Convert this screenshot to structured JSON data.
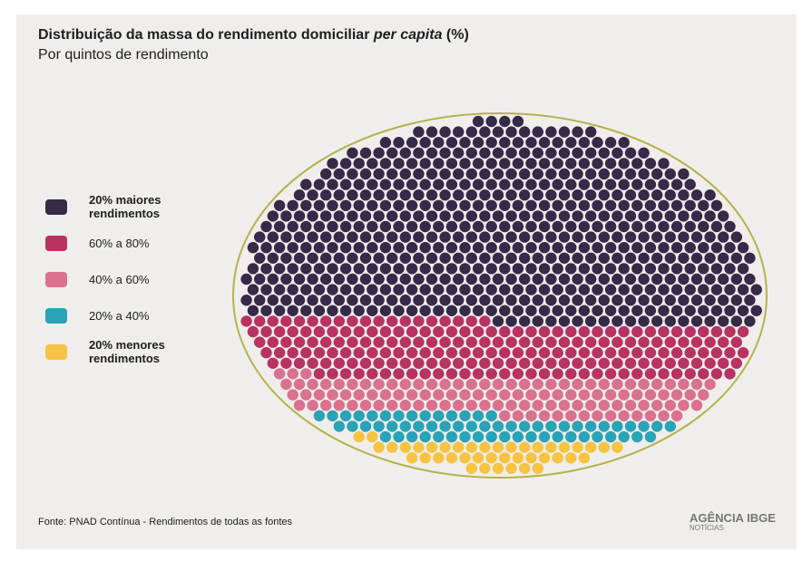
{
  "chart_data": {
    "type": "dot-ellipse",
    "title": [
      "Distribuição da massa do rendimento domiciliar ",
      "per capita",
      " (%)"
    ],
    "subtitle": "Por quintos de rendimento",
    "categories": [
      "20% maiores rendimentos",
      "60% a 80%",
      "40% a 60%",
      "20% a 40%",
      "20% menores rendimentos"
    ],
    "values": [
      59.5,
      19.5,
      11,
      6,
      4
    ],
    "colors": [
      "#372a48",
      "#b83262",
      "#d9718f",
      "#2aa3b7",
      "#f6c343"
    ],
    "outline_color": "#b5b34a",
    "source": "Fonte: PNAD Contínua - Rendimentos de todas as fontes",
    "logo": [
      "AGÊNCIA IBGE",
      "NOTÍCIAS"
    ]
  }
}
